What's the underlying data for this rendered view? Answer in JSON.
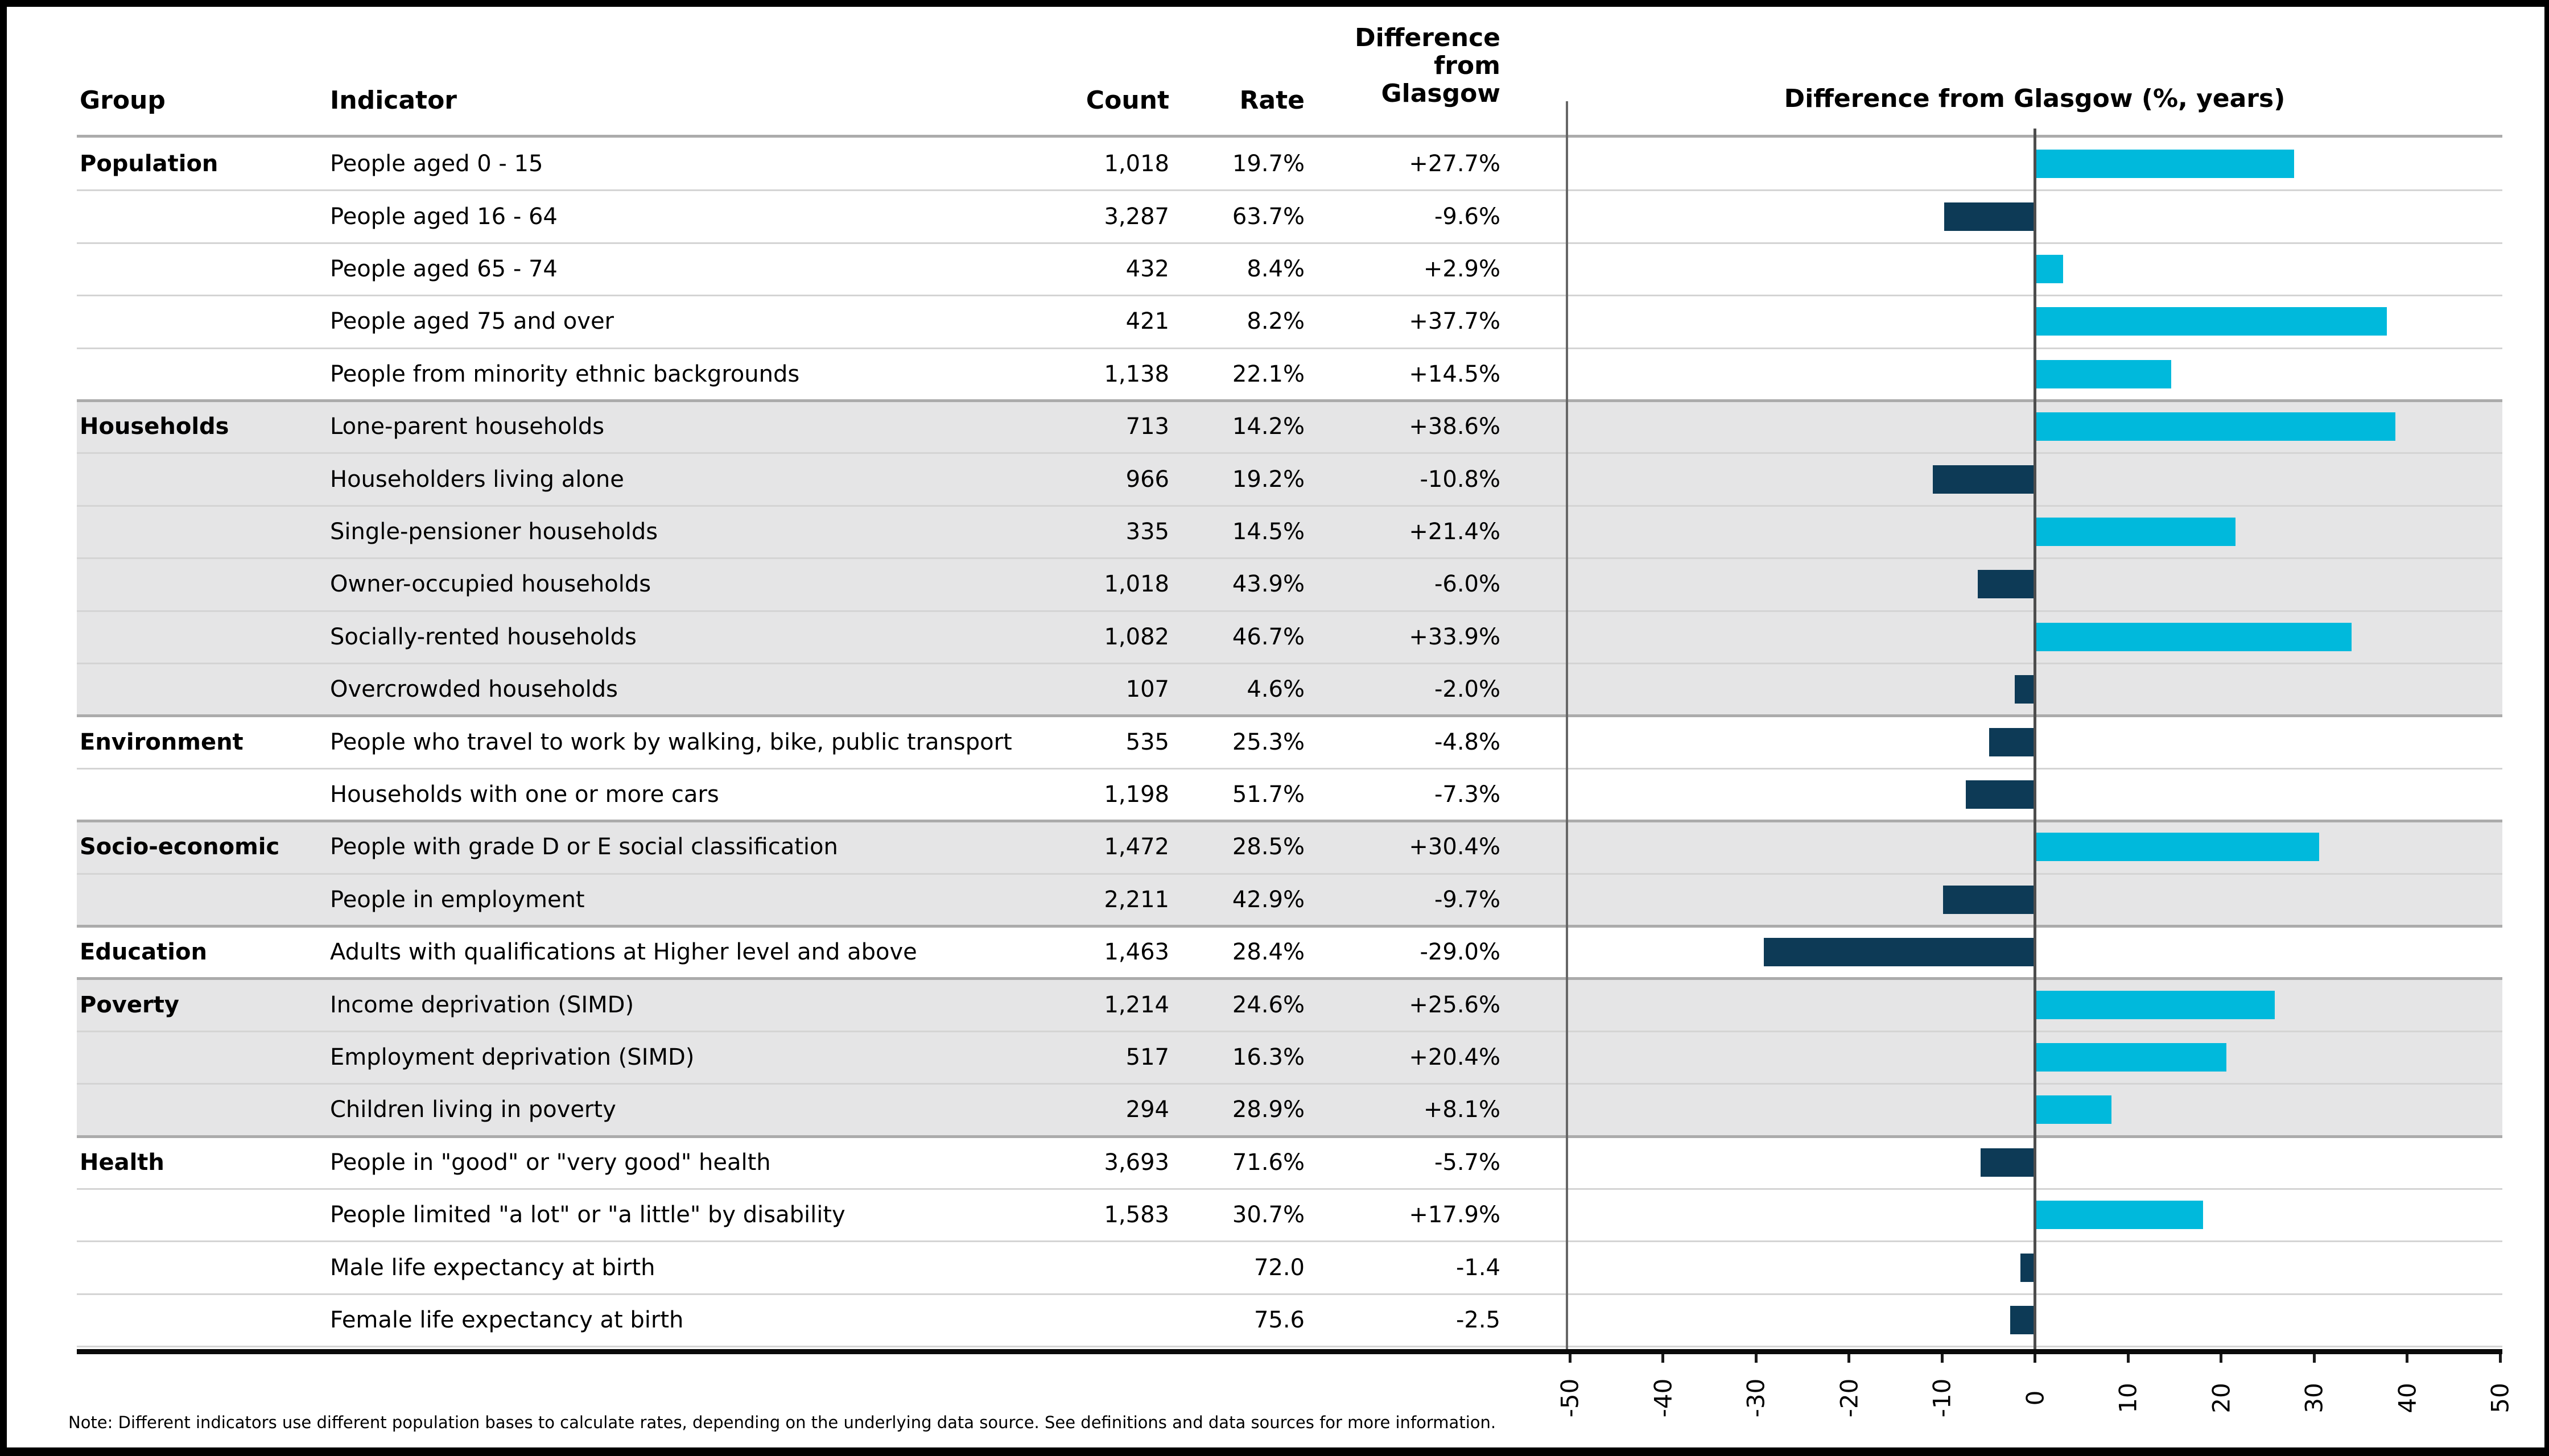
{
  "header": {
    "columns": {
      "group": "Group",
      "indicator": "Indicator",
      "count": "Count",
      "rate": "Rate",
      "difference": "Difference\nfrom\nGlasgow"
    }
  },
  "chart": {
    "title": "Difference from Glasgow (%, years)"
  },
  "note": "Note: Different indicators use different population bases to calculate rates, depending on the underlying data source. See definitions and data sources for more information.",
  "colors": {
    "positive_bar": "#00b9dc",
    "negative_bar": "#0d3a56",
    "shaded_row_background": "#e5e5e6",
    "row_separator": "#d4d4d4",
    "group_separator": "#ababab",
    "zero_line": "#4d4d4d",
    "chart_left_line": "#666666",
    "axis_line": "#0a0a0a"
  },
  "groups": [
    {
      "label": "Population",
      "shaded": false,
      "rows": [
        {
          "indicator": "People aged 0 - 15",
          "count": "1,018",
          "rate": "19.7%",
          "diff": "+27.7%",
          "value": 27.7
        },
        {
          "indicator": "People aged 16 - 64",
          "count": "3,287",
          "rate": "63.7%",
          "diff": "-9.6%",
          "value": -9.6
        },
        {
          "indicator": "People aged 65 - 74",
          "count": "432",
          "rate": "8.4%",
          "diff": "+2.9%",
          "value": 2.9
        },
        {
          "indicator": "People aged 75 and over",
          "count": "421",
          "rate": "8.2%",
          "diff": "+37.7%",
          "value": 37.7
        },
        {
          "indicator": "People from minority ethnic backgrounds",
          "count": "1,138",
          "rate": "22.1%",
          "diff": "+14.5%",
          "value": 14.5
        }
      ]
    },
    {
      "label": "Households",
      "shaded": true,
      "rows": [
        {
          "indicator": "Lone-parent households",
          "count": "713",
          "rate": "14.2%",
          "diff": "+38.6%",
          "value": 38.6
        },
        {
          "indicator": "Householders living alone",
          "count": "966",
          "rate": "19.2%",
          "diff": "-10.8%",
          "value": -10.8
        },
        {
          "indicator": "Single-pensioner households",
          "count": "335",
          "rate": "14.5%",
          "diff": "+21.4%",
          "value": 21.4
        },
        {
          "indicator": "Owner-occupied households",
          "count": "1,018",
          "rate": "43.9%",
          "diff": "-6.0%",
          "value": -6.0
        },
        {
          "indicator": "Socially-rented households",
          "count": "1,082",
          "rate": "46.7%",
          "diff": "+33.9%",
          "value": 33.9
        },
        {
          "indicator": "Overcrowded households",
          "count": "107",
          "rate": "4.6%",
          "diff": "-2.0%",
          "value": -2.0
        }
      ]
    },
    {
      "label": "Environment",
      "shaded": false,
      "rows": [
        {
          "indicator": "People who travel to work by walking, bike, public transport",
          "count": "535",
          "rate": "25.3%",
          "diff": "-4.8%",
          "value": -4.8
        },
        {
          "indicator": "Households with one or more cars",
          "count": "1,198",
          "rate": "51.7%",
          "diff": "-7.3%",
          "value": -7.3
        }
      ]
    },
    {
      "label": "Socio-economic",
      "shaded": true,
      "rows": [
        {
          "indicator": "People with grade D or E social classification",
          "count": "1,472",
          "rate": "28.5%",
          "diff": "+30.4%",
          "value": 30.4
        },
        {
          "indicator": "People in employment",
          "count": "2,211",
          "rate": "42.9%",
          "diff": "-9.7%",
          "value": -9.7
        }
      ]
    },
    {
      "label": "Education",
      "shaded": false,
      "rows": [
        {
          "indicator": "Adults with qualifications at Higher level and above",
          "count": "1,463",
          "rate": "28.4%",
          "diff": "-29.0%",
          "value": -29.0
        }
      ]
    },
    {
      "label": "Poverty",
      "shaded": true,
      "rows": [
        {
          "indicator": "Income deprivation (SIMD)",
          "count": "1,214",
          "rate": "24.6%",
          "diff": "+25.6%",
          "value": 25.6
        },
        {
          "indicator": "Employment deprivation (SIMD)",
          "count": "517",
          "rate": "16.3%",
          "diff": "+20.4%",
          "value": 20.4
        },
        {
          "indicator": "Children living in poverty",
          "count": "294",
          "rate": "28.9%",
          "diff": "+8.1%",
          "value": 8.1
        }
      ]
    },
    {
      "label": "Health",
      "shaded": false,
      "rows": [
        {
          "indicator": "People in \"good\" or \"very good\" health",
          "count": "3,693",
          "rate": "71.6%",
          "diff": "-5.7%",
          "value": -5.7
        },
        {
          "indicator": "People limited \"a lot\" or \"a little\" by disability",
          "count": "1,583",
          "rate": "30.7%",
          "diff": "+17.9%",
          "value": 17.9
        },
        {
          "indicator": "Male life expectancy at birth",
          "count": "",
          "rate": "72.0",
          "diff": "-1.4",
          "value": -1.4
        },
        {
          "indicator": "Female life expectancy at birth",
          "count": "",
          "rate": "75.6",
          "diff": "-2.5",
          "value": -2.5
        }
      ]
    }
  ],
  "chart_data": {
    "type": "bar",
    "orientation": "horizontal",
    "title": "Difference from Glasgow (%, years)",
    "categories": [
      "People aged 0 - 15",
      "People aged 16 - 64",
      "People aged 65 - 74",
      "People aged 75 and over",
      "People from minority ethnic backgrounds",
      "Lone-parent households",
      "Householders living alone",
      "Single-pensioner households",
      "Owner-occupied households",
      "Socially-rented households",
      "Overcrowded households",
      "People who travel to work by walking, bike, public transport",
      "Households with one or more cars",
      "People with grade D or E social classification",
      "People in employment",
      "Adults with qualifications at Higher level and above",
      "Income deprivation (SIMD)",
      "Employment deprivation (SIMD)",
      "Children living in poverty",
      "People in \"good\" or \"very good\" health",
      "People limited \"a lot\" or \"a little\" by disability",
      "Male life expectancy at birth",
      "Female life expectancy at birth"
    ],
    "values": [
      27.7,
      -9.6,
      2.9,
      37.7,
      14.5,
      38.6,
      -10.8,
      21.4,
      -6.0,
      33.9,
      -2.0,
      -4.8,
      -7.3,
      30.4,
      -9.7,
      -29.0,
      25.6,
      20.4,
      8.1,
      -5.7,
      17.9,
      -1.4,
      -2.5
    ],
    "xlabel": "",
    "ylabel": "",
    "xlim": [
      -50,
      50
    ],
    "xticks": [
      -50,
      -40,
      -30,
      -20,
      -10,
      0,
      10,
      20,
      30,
      40,
      50
    ],
    "grid": false,
    "legend": null,
    "positive_color": "#00b9dc",
    "negative_color": "#0d3a56"
  }
}
